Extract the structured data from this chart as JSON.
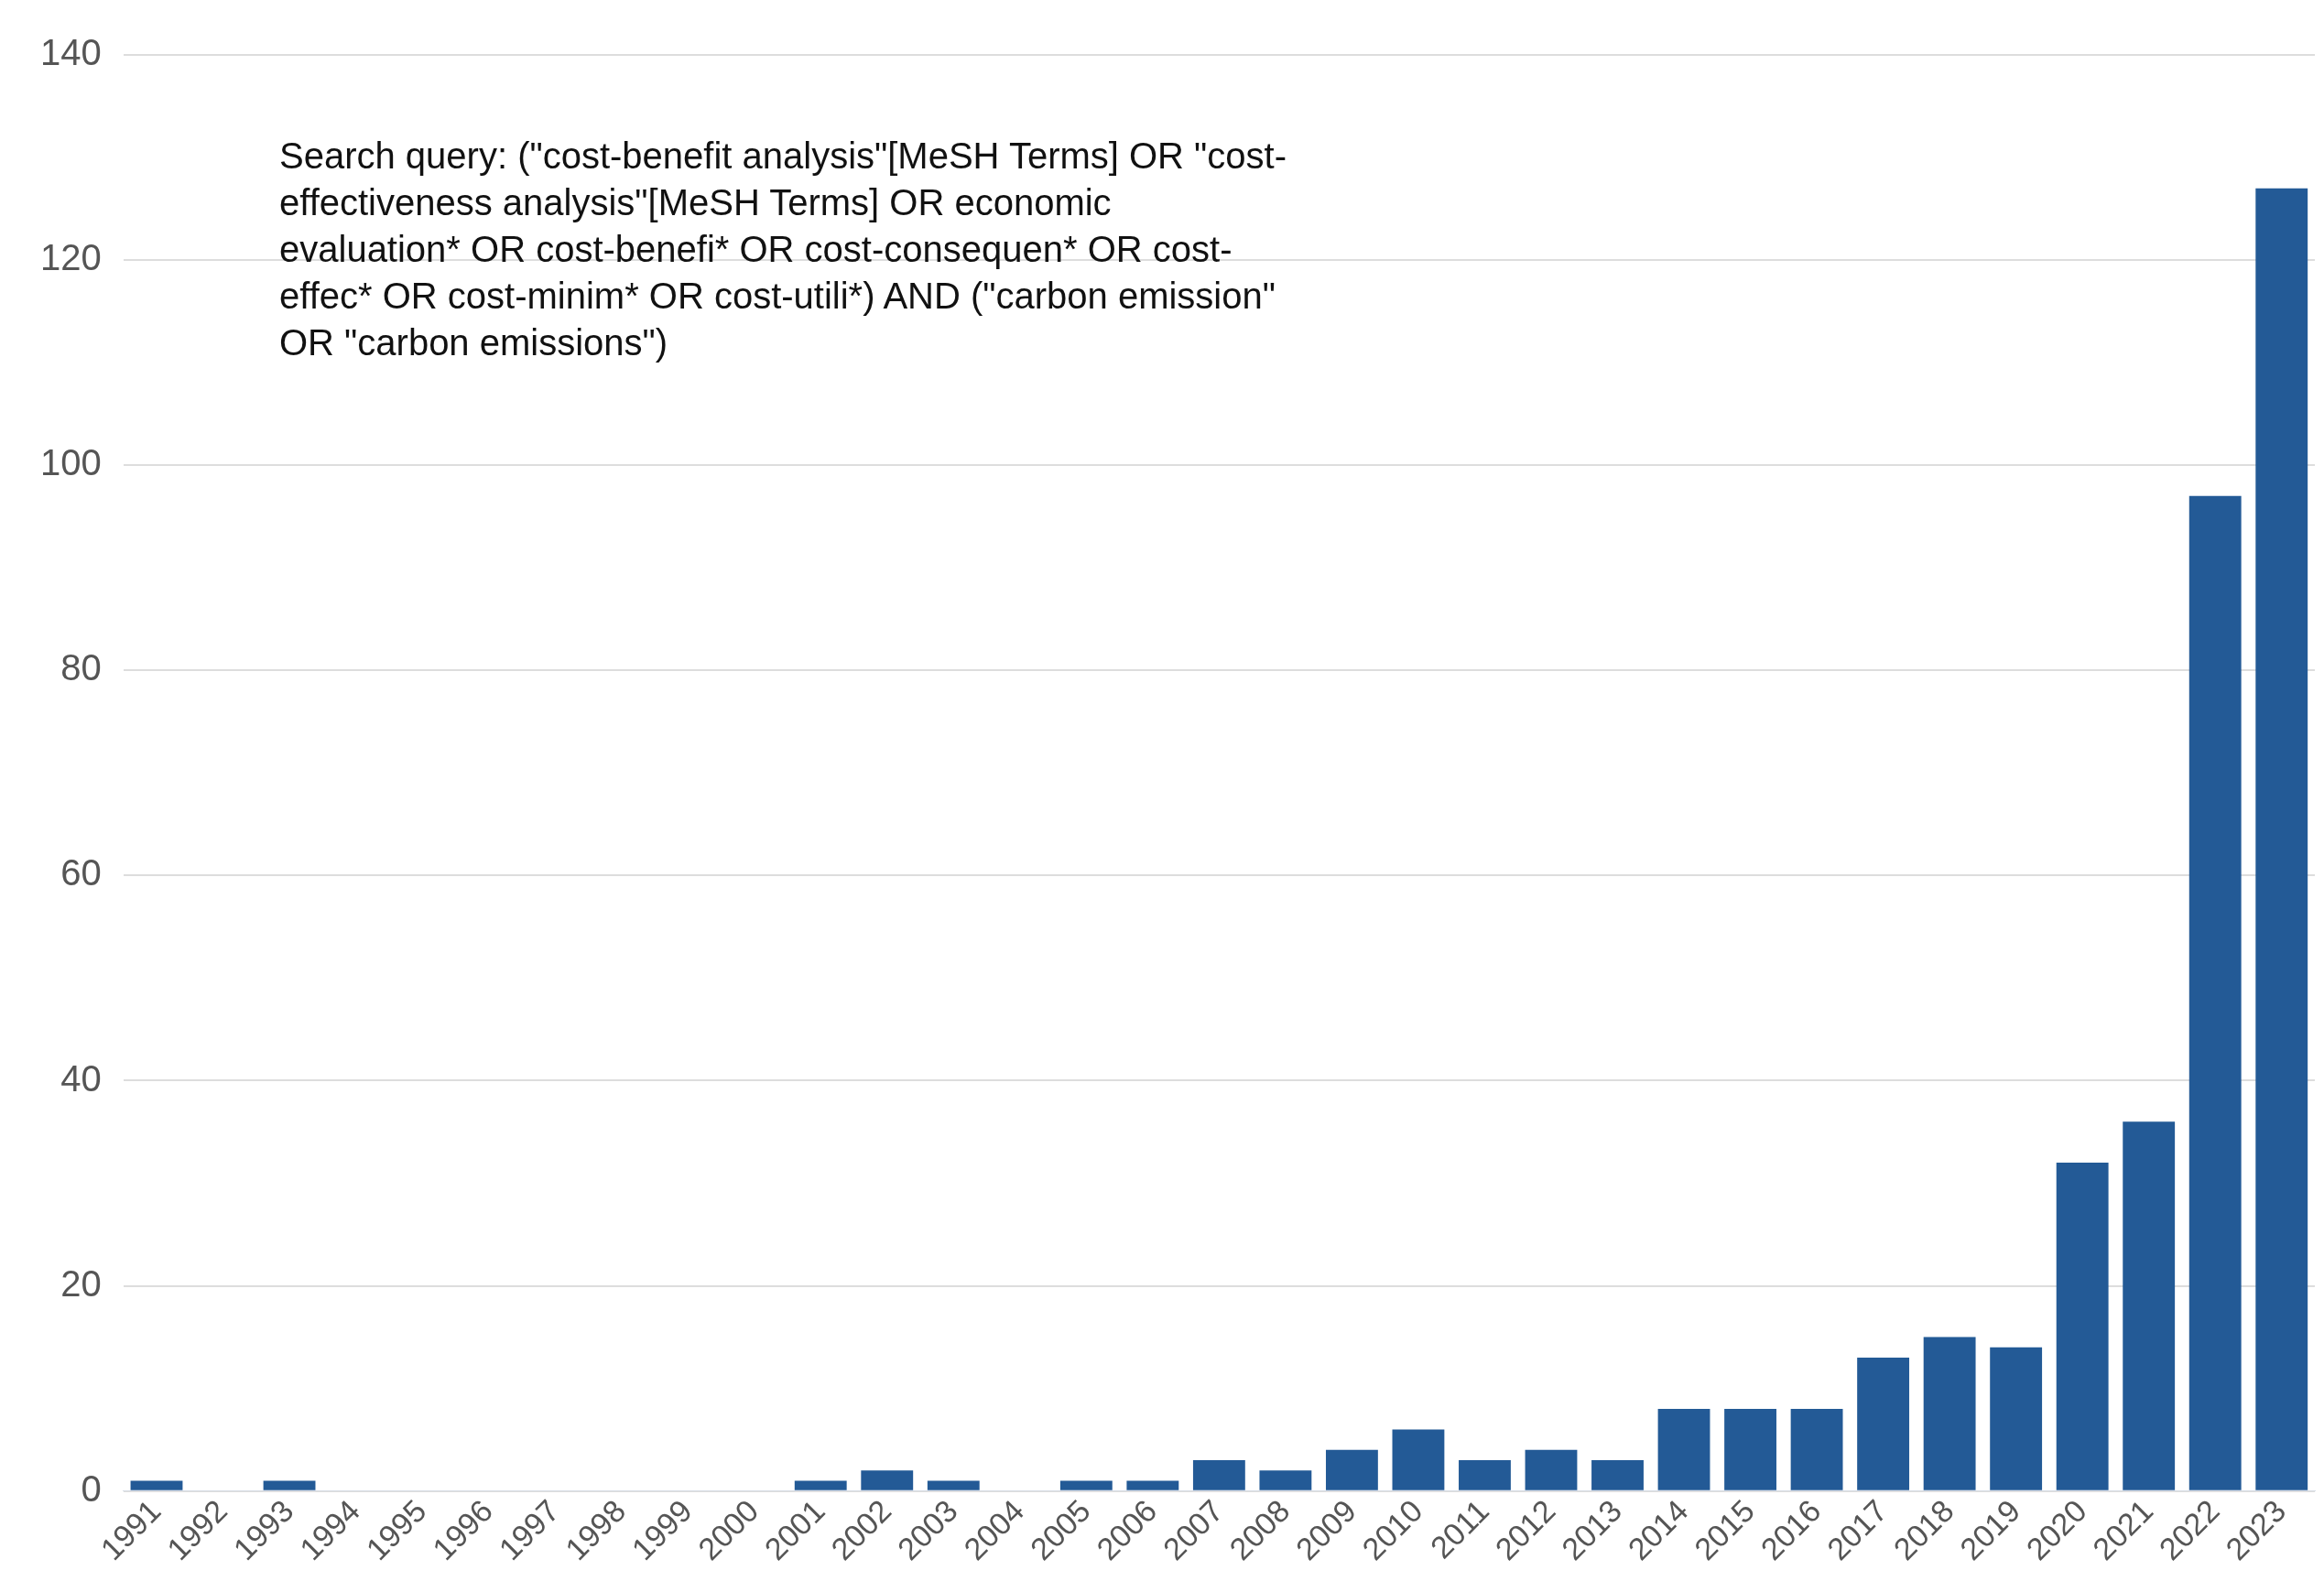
{
  "chart_data": {
    "type": "bar",
    "categories": [
      "1991",
      "1992",
      "1993",
      "1994",
      "1995",
      "1996",
      "1997",
      "1998",
      "1999",
      "2000",
      "2001",
      "2002",
      "2003",
      "2004",
      "2005",
      "2006",
      "2007",
      "2008",
      "2009",
      "2010",
      "2011",
      "2012",
      "2013",
      "2014",
      "2015",
      "2016",
      "2017",
      "2018",
      "2019",
      "2020",
      "2021",
      "2022",
      "2023"
    ],
    "values": [
      1,
      0,
      1,
      0,
      0,
      0,
      0,
      0,
      0,
      0,
      1,
      2,
      1,
      0,
      1,
      1,
      3,
      2,
      4,
      6,
      3,
      4,
      3,
      8,
      8,
      8,
      13,
      15,
      14,
      32,
      36,
      97,
      127
    ],
    "color": "#235a96",
    "ylim": [
      0,
      140
    ],
    "yticks": [
      0,
      20,
      40,
      60,
      80,
      100,
      120,
      140
    ],
    "grid": "y",
    "legend": false,
    "annotations": [
      "Search query: (\"cost-benefit analysis\"[MeSH Terms] OR \"cost-effectiveness analysis\"[MeSH Terms] OR economic evaluation* OR cost-benefi* OR cost-consequen* OR cost-effec* OR cost-minim* OR cost-utili*) AND (\"carbon emission\" OR \"carbon emissions\")"
    ]
  }
}
